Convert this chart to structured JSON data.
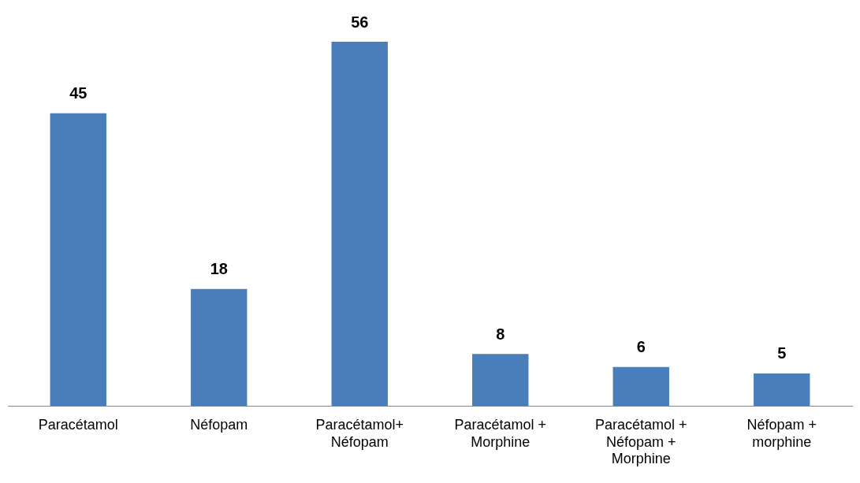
{
  "chart_data": {
    "type": "bar",
    "categories": [
      "Paracétamol",
      "Néfopam",
      "Paracétamol+ Néfopam",
      "Paracétamol + Morphine",
      "Paracétamol + Néfopam + Morphine",
      "Néfopam + morphine"
    ],
    "values": [
      45,
      18,
      56,
      8,
      6,
      5
    ],
    "color": "#4a7ebb",
    "data_labels": true,
    "grid": false,
    "legend": false
  }
}
